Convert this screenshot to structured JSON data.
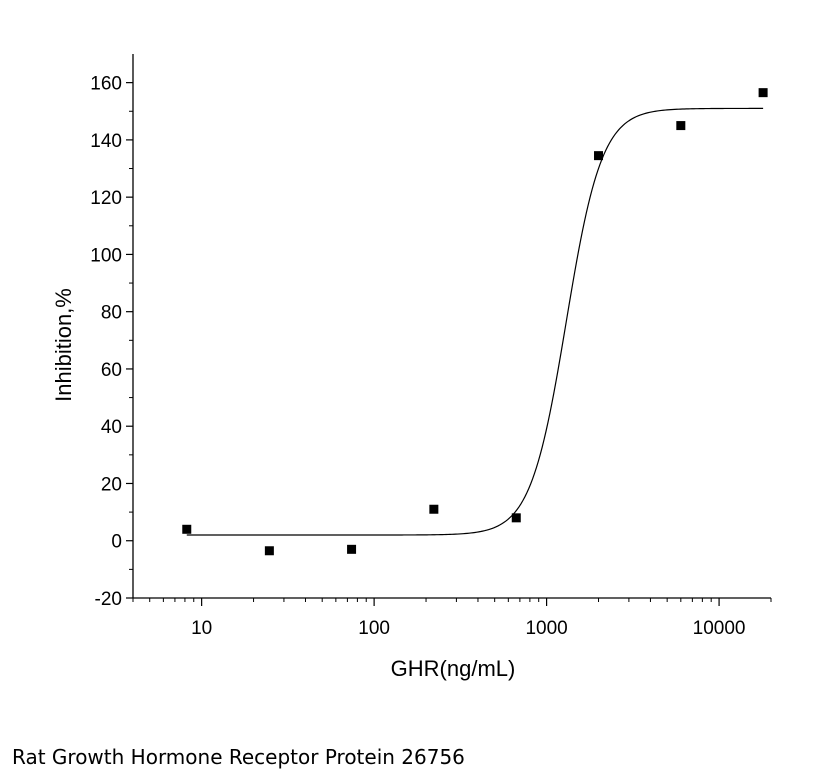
{
  "caption": "Rat Growth Hormone Receptor Protein 26756",
  "chart_data": {
    "type": "scatter",
    "title": "",
    "xlabel": "GHR(ng/mL)",
    "ylabel": "Inhibition,%",
    "x_scale": "log",
    "xlim": [
      4,
      20000
    ],
    "ylim": [
      -20,
      170
    ],
    "x_ticks": [
      10,
      100,
      1000,
      10000
    ],
    "x_tick_labels": [
      "10",
      "100",
      "1000",
      "10000"
    ],
    "y_ticks": [
      -20,
      0,
      20,
      40,
      60,
      80,
      100,
      120,
      140,
      160
    ],
    "y_tick_labels": [
      "-20",
      "0",
      "20",
      "40",
      "60",
      "80",
      "100",
      "120",
      "140",
      "160"
    ],
    "grid": false,
    "points": [
      {
        "x": 8.2,
        "y": 4
      },
      {
        "x": 24.7,
        "y": -3.5
      },
      {
        "x": 74,
        "y": -3
      },
      {
        "x": 222,
        "y": 11
      },
      {
        "x": 667,
        "y": 8
      },
      {
        "x": 2000,
        "y": 134.5
      },
      {
        "x": 6000,
        "y": 145
      },
      {
        "x": 18000,
        "y": 156.5
      }
    ],
    "fit_curve": {
      "model": "4PL",
      "bottom": 2,
      "top": 151,
      "ec50": 1300,
      "hill": 4.2,
      "x_range": [
        8.2,
        18000
      ]
    },
    "marker_color": "#000000",
    "curve_color": "#000000"
  }
}
